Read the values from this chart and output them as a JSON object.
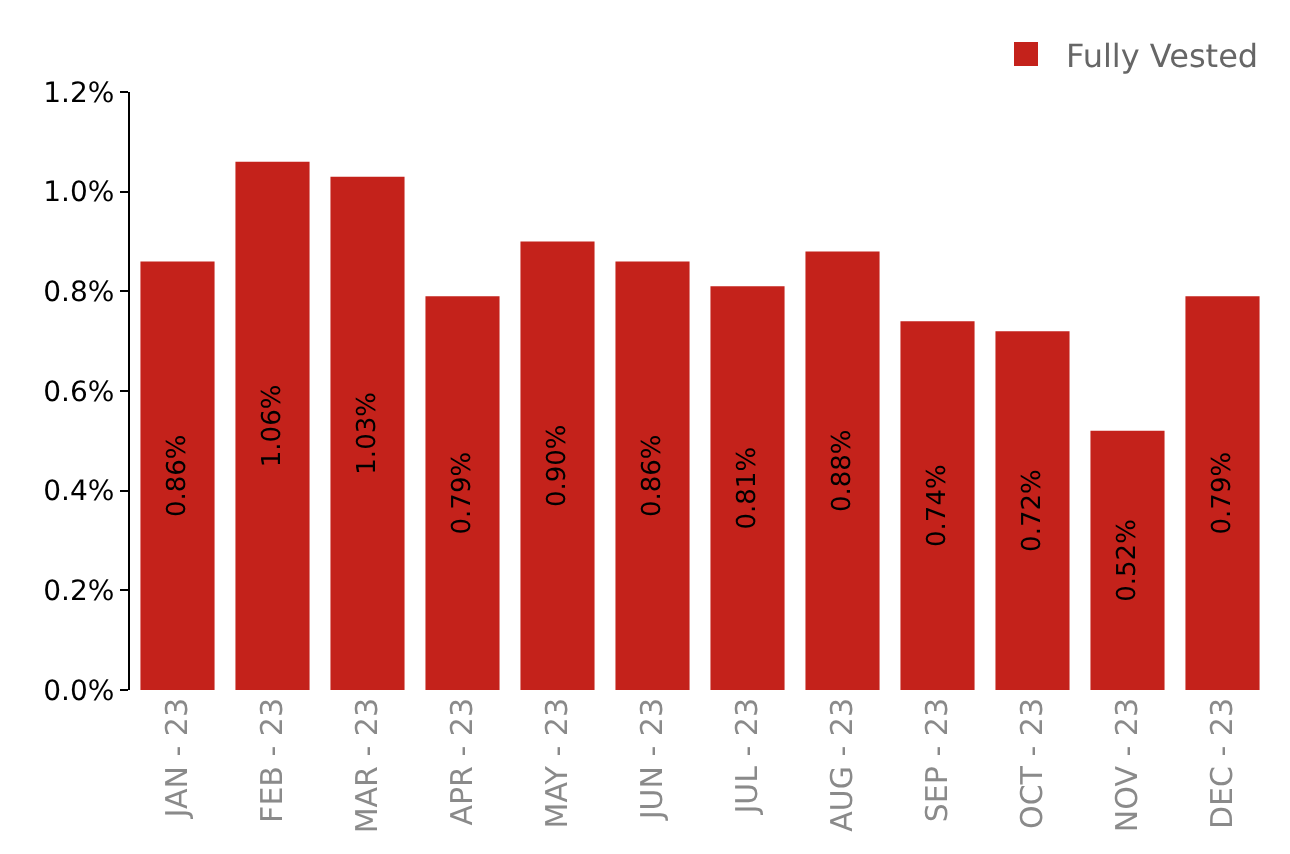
{
  "chart_data": {
    "type": "bar",
    "categories": [
      "JAN - 23",
      "FEB - 23",
      "MAR - 23",
      "APR - 23",
      "MAY - 23",
      "JUN - 23",
      "JUL - 23",
      "AUG - 23",
      "SEP - 23",
      "OCT - 23",
      "NOV - 23",
      "DEC - 23"
    ],
    "series": [
      {
        "name": "Fully Vested",
        "color": "#c4221b",
        "values": [
          0.86,
          1.06,
          1.03,
          0.79,
          0.9,
          0.86,
          0.81,
          0.88,
          0.74,
          0.72,
          0.52,
          0.79
        ],
        "value_labels": [
          "0.86%",
          "1.06%",
          "1.03%",
          "0.79%",
          "0.90%",
          "0.86%",
          "0.81%",
          "0.88%",
          "0.74%",
          "0.72%",
          "0.52%",
          "0.79%"
        ]
      }
    ],
    "ylim": [
      0,
      1.2
    ],
    "yticks": [
      {
        "value": 0,
        "label": "0.0%"
      },
      {
        "value": 0.2,
        "label": "0.2%"
      },
      {
        "value": 0.4,
        "label": "0.4%"
      },
      {
        "value": 0.6,
        "label": "0.6%"
      },
      {
        "value": 0.8,
        "label": "0.8%"
      },
      {
        "value": 1.0,
        "label": "1.0%"
      },
      {
        "value": 1.2,
        "label": "1.2%"
      }
    ],
    "legend": "top right"
  }
}
